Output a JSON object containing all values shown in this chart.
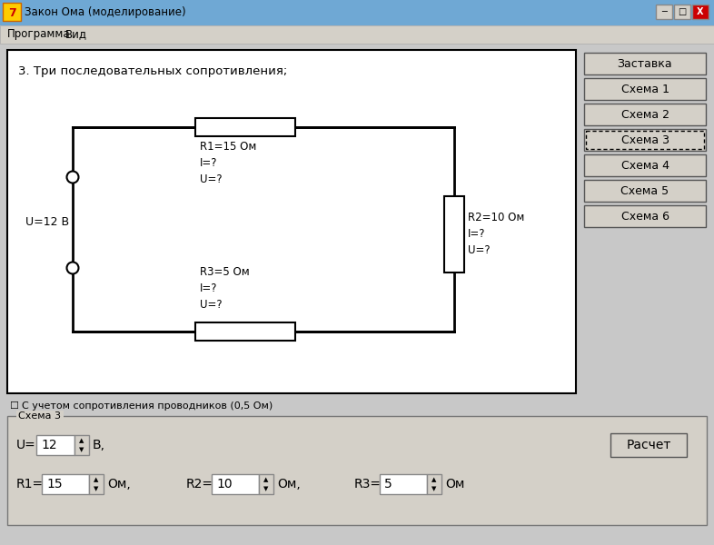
{
  "title": "Закон Ома (моделирование)",
  "menu_items": [
    "Программа",
    "Вид"
  ],
  "circuit_title": "3. Три последовательных сопротивления;",
  "buttons": [
    "Заставка",
    "Схема 1",
    "Схема 2",
    "Схема 3",
    "Схема 4",
    "Схема 5",
    "Схема 6"
  ],
  "active_button": "Схема 3",
  "voltage_label": "U=12 В",
  "r1_label": "R1=15 Ом\nI=?\nU=?",
  "r2_label": "R2=10 Ом\nI=?\nU=?",
  "r3_label": "R3=5 Ом\nI=?\nU=?",
  "checkbox_label": "С учетом сопротивления проводников (0,5 Ом)",
  "group_label": "Схема 3",
  "u_label": "U=",
  "u_value": "12",
  "u_unit": "В,",
  "r1_input_label": "R1=",
  "r1_value": "15",
  "r1_unit": "Ом,",
  "r2_input_label": "R2=",
  "r2_value": "10",
  "r2_unit": "Ом,",
  "r3_input_label": "R3=",
  "r3_value": "5",
  "r3_unit": "Ом",
  "calc_button": "Расчет",
  "bg_color": "#d4d0c8",
  "white": "#ffffff",
  "dark": "#000000",
  "title_bg": "#6fa8d4",
  "title_text_color": "#000000",
  "close_btn_color": "#cc0000"
}
